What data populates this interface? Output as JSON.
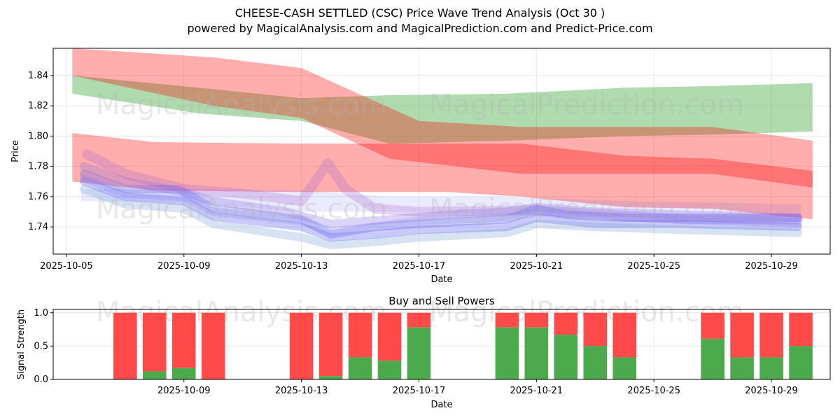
{
  "header": {
    "title": "CHEESE-CASH SETTLED (CSC) Price Wave Trend Analysis (Oct 30 )",
    "subtitle": "powered by MagicalAnalysis.com and MagicalPrediction.com and Predict-Price.com"
  },
  "watermarks": [
    "MagicalAnalysis.com",
    "MagicalPrediction.com"
  ],
  "colors": {
    "green": "#2ca02c",
    "red": "#ff0000",
    "blue": "#3b3bff",
    "grid": "#e6e6e6",
    "bar_red": "#ff4a4a",
    "bar_green": "#4caa4c"
  },
  "chart_data": [
    {
      "type": "area",
      "name": "price-wave-chart",
      "xlabel": "Date",
      "ylabel": "Price",
      "ylim": [
        1.722,
        1.858
      ],
      "yticks": [
        1.74,
        1.76,
        1.78,
        1.8,
        1.82,
        1.84
      ],
      "ytick_labels": [
        "1.74",
        "1.76",
        "1.78",
        "1.80",
        "1.82",
        "1.84"
      ],
      "xticks": [
        "2025-10-05",
        "2025-10-09",
        "2025-10-13",
        "2025-10-17",
        "2025-10-21",
        "2025-10-25",
        "2025-10-29"
      ],
      "grid": true,
      "bands": [
        {
          "name": "green-wave-band",
          "color": "green",
          "opacity": 0.38,
          "upper": [
            [
              5.2,
              1.84
            ],
            [
              9.5,
              1.832
            ],
            [
              13,
              1.825
            ],
            [
              16,
              1.827
            ],
            [
              20,
              1.828
            ],
            [
              24,
              1.832
            ],
            [
              27,
              1.833
            ],
            [
              30.4,
              1.835
            ]
          ],
          "lower": [
            [
              5.2,
              1.828
            ],
            [
              9.5,
              1.815
            ],
            [
              13,
              1.81
            ],
            [
              16,
              1.795
            ],
            [
              20,
              1.797
            ],
            [
              24,
              1.8
            ],
            [
              27,
              1.801
            ],
            [
              30.4,
              1.803
            ]
          ]
        },
        {
          "name": "red-wave-band-1",
          "color": "red",
          "opacity": 0.32,
          "upper": [
            [
              5.2,
              1.858
            ],
            [
              10,
              1.852
            ],
            [
              13,
              1.845
            ],
            [
              17,
              1.81
            ],
            [
              20.5,
              1.806
            ],
            [
              24,
              1.806
            ],
            [
              27,
              1.806
            ],
            [
              30.4,
              1.797
            ]
          ],
          "lower": [
            [
              5.2,
              1.84
            ],
            [
              10,
              1.82
            ],
            [
              13,
              1.812
            ],
            [
              16,
              1.785
            ],
            [
              20.5,
              1.775
            ],
            [
              24,
              1.775
            ],
            [
              27,
              1.775
            ],
            [
              30.4,
              1.766
            ]
          ]
        },
        {
          "name": "red-wave-band-2",
          "color": "red",
          "opacity": 0.32,
          "upper": [
            [
              5.2,
              1.802
            ],
            [
              8,
              1.796
            ],
            [
              13,
              1.795
            ],
            [
              18,
              1.795
            ],
            [
              20.5,
              1.795
            ],
            [
              24,
              1.787
            ],
            [
              27,
              1.785
            ],
            [
              30.4,
              1.777
            ]
          ],
          "lower": [
            [
              5.2,
              1.77
            ],
            [
              8,
              1.764
            ],
            [
              13,
              1.763
            ],
            [
              18,
              1.763
            ],
            [
              20.5,
              1.76
            ],
            [
              24,
              1.753
            ],
            [
              27,
              1.752
            ],
            [
              30.4,
              1.745
            ]
          ]
        },
        {
          "name": "blue-wave-band",
          "color": "blue",
          "opacity": 0.1,
          "upper": [
            [
              5.5,
              1.765
            ],
            [
              9,
              1.765
            ],
            [
              13,
              1.764
            ],
            [
              16,
              1.76
            ],
            [
              20,
              1.76
            ],
            [
              24,
              1.757
            ],
            [
              30,
              1.755
            ]
          ],
          "lower": [
            [
              5.5,
              1.757
            ],
            [
              9,
              1.756
            ],
            [
              13,
              1.75
            ],
            [
              16,
              1.75
            ],
            [
              20,
              1.748
            ],
            [
              24,
              1.746
            ],
            [
              30,
              1.74
            ]
          ]
        }
      ],
      "ribbons": [
        {
          "name": "purple-spike-ribbon",
          "color": "#b070d0",
          "opacity": 0.3,
          "width": 14,
          "points": [
            [
              5.7,
              1.788
            ],
            [
              7,
              1.775
            ],
            [
              9,
              1.765
            ],
            [
              11,
              1.762
            ],
            [
              13,
              1.757
            ],
            [
              13.9,
              1.782
            ],
            [
              14.5,
              1.765
            ],
            [
              15.5,
              1.752
            ],
            [
              17,
              1.75
            ],
            [
              21,
              1.751
            ],
            [
              26,
              1.745
            ],
            [
              29.9,
              1.745
            ]
          ]
        },
        {
          "name": "wave-line-1",
          "color": "#6060ee",
          "opacity": 0.3,
          "width": 12,
          "points": [
            [
              5.6,
              1.775
            ],
            [
              7,
              1.765
            ],
            [
              8.8,
              1.765
            ],
            [
              10,
              1.752
            ],
            [
              13,
              1.745
            ],
            [
              14,
              1.735
            ],
            [
              15.5,
              1.74
            ],
            [
              17,
              1.742
            ],
            [
              20,
              1.745
            ],
            [
              21,
              1.752
            ],
            [
              22,
              1.748
            ],
            [
              24,
              1.746
            ],
            [
              27,
              1.746
            ],
            [
              29.9,
              1.746
            ]
          ]
        },
        {
          "name": "wave-line-2",
          "color": "#8a6fe0",
          "opacity": 0.3,
          "width": 12,
          "points": [
            [
              5.6,
              1.78
            ],
            [
              7,
              1.77
            ],
            [
              9,
              1.763
            ],
            [
              10,
              1.757
            ],
            [
              12.5,
              1.75
            ],
            [
              14,
              1.742
            ],
            [
              16,
              1.745
            ],
            [
              18,
              1.748
            ],
            [
              20,
              1.75
            ],
            [
              21,
              1.753
            ],
            [
              23,
              1.75
            ],
            [
              26,
              1.748
            ],
            [
              29.9,
              1.746
            ]
          ]
        },
        {
          "name": "wave-line-3",
          "color": "#5050f0",
          "opacity": 0.3,
          "width": 12,
          "points": [
            [
              5.6,
              1.77
            ],
            [
              7,
              1.76
            ],
            [
              9,
              1.757
            ],
            [
              10,
              1.747
            ],
            [
              13,
              1.74
            ],
            [
              14,
              1.733
            ],
            [
              15.5,
              1.735
            ],
            [
              17,
              1.738
            ],
            [
              20,
              1.74
            ],
            [
              21,
              1.746
            ],
            [
              23,
              1.742
            ],
            [
              26,
              1.742
            ],
            [
              29.9,
              1.74
            ]
          ]
        },
        {
          "name": "wave-line-4",
          "color": "#7aa0d8",
          "opacity": 0.3,
          "width": 12,
          "points": [
            [
              5.6,
              1.765
            ],
            [
              7,
              1.755
            ],
            [
              9,
              1.752
            ],
            [
              10,
              1.742
            ],
            [
              13,
              1.733
            ],
            [
              14,
              1.728
            ],
            [
              15.5,
              1.73
            ],
            [
              17,
              1.733
            ],
            [
              20,
              1.736
            ],
            [
              21,
              1.742
            ],
            [
              23,
              1.74
            ],
            [
              26,
              1.738
            ],
            [
              29.9,
              1.736
            ]
          ]
        },
        {
          "name": "wave-line-5",
          "color": "#9090f0",
          "opacity": 0.3,
          "width": 12,
          "points": [
            [
              5.6,
              1.772
            ],
            [
              7,
              1.762
            ],
            [
              9,
              1.76
            ],
            [
              10,
              1.75
            ],
            [
              13,
              1.744
            ],
            [
              14,
              1.737
            ],
            [
              15.5,
              1.74
            ],
            [
              17,
              1.744
            ],
            [
              20,
              1.746
            ],
            [
              21,
              1.75
            ],
            [
              23,
              1.747
            ],
            [
              26,
              1.745
            ],
            [
              29.9,
              1.742
            ]
          ]
        }
      ]
    },
    {
      "type": "bar",
      "name": "buy-sell-powers-chart",
      "title": "Buy and Sell Powers",
      "xlabel": "Date",
      "ylabel": "Signal Strength",
      "ylim": [
        0,
        1.05
      ],
      "yticks": [
        0.0,
        0.5,
        1.0
      ],
      "ytick_labels": [
        "0.0",
        "0.5",
        "1.0"
      ],
      "xticks": [
        "2025-10-09",
        "2025-10-13",
        "2025-10-17",
        "2025-10-21",
        "2025-10-25",
        "2025-10-29"
      ],
      "grid": true,
      "series": [
        {
          "name": "Buy",
          "color": "bar_green"
        },
        {
          "name": "Sell",
          "color": "bar_red"
        }
      ],
      "bars": [
        {
          "day": 7,
          "buy": 0.0
        },
        {
          "day": 8,
          "buy": 0.12
        },
        {
          "day": 9,
          "buy": 0.17
        },
        {
          "day": 10,
          "buy": 0.0
        },
        {
          "day": 13,
          "buy": 0.0
        },
        {
          "day": 14,
          "buy": 0.05
        },
        {
          "day": 15,
          "buy": 0.33
        },
        {
          "day": 16,
          "buy": 0.28
        },
        {
          "day": 17,
          "buy": 0.78
        },
        {
          "day": 20,
          "buy": 0.78
        },
        {
          "day": 21,
          "buy": 0.78
        },
        {
          "day": 22,
          "buy": 0.67
        },
        {
          "day": 23,
          "buy": 0.5
        },
        {
          "day": 24,
          "buy": 0.33
        },
        {
          "day": 27,
          "buy": 0.61
        },
        {
          "day": 28,
          "buy": 0.33
        },
        {
          "day": 29,
          "buy": 0.33
        },
        {
          "day": 30,
          "buy": 0.5
        }
      ]
    }
  ]
}
